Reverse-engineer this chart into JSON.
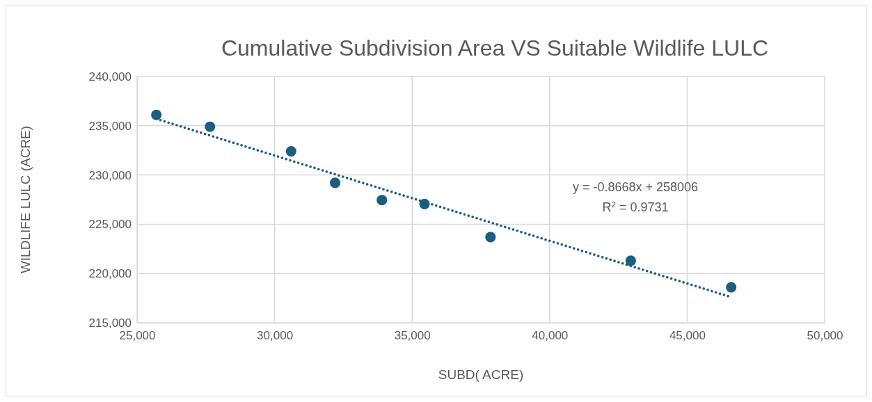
{
  "chart_data": {
    "type": "scatter",
    "title": "Cumulative Subdivision Area VS Suitable Wildlife LULC",
    "xlabel": "SUBD( ACRE)",
    "ylabel": "WILDLIFE LULC (ACRE)",
    "series": [
      {
        "color": "#1b5e80",
        "x": [
          25700,
          27650,
          30600,
          32200,
          33900,
          35450,
          37850,
          42950,
          46600
        ],
        "values": [
          236100,
          234900,
          232400,
          229200,
          227450,
          227050,
          223700,
          221300,
          218600
        ],
        "marker": "circle"
      },
      {
        "type": "line",
        "color": "#1b5e80",
        "x": [
          25700,
          46600
        ],
        "values": [
          235700,
          217600
        ],
        "line_style": "dotted",
        "marker": "none"
      }
    ],
    "annotations": [
      "y = -0.8668x + 258006",
      "R$^{2}$ = 0.9731"
    ],
    "xlim": [
      25000,
      50000
    ],
    "xticks": [
      {
        "value": 25000,
        "label": "25,000"
      },
      {
        "value": 30000,
        "label": "30,000"
      },
      {
        "value": 35000,
        "label": "35,000"
      },
      {
        "value": 40000,
        "label": "40,000"
      },
      {
        "value": 45000,
        "label": "45,000"
      },
      {
        "value": 50000,
        "label": "50,000"
      }
    ],
    "ylim": [
      215000,
      240000
    ],
    "yticks": [
      {
        "value": 215000,
        "label": "215,000"
      },
      {
        "value": 220000,
        "label": "220,000"
      },
      {
        "value": 225000,
        "label": "225,000"
      },
      {
        "value": 230000,
        "label": "230,000"
      },
      {
        "value": 235000,
        "label": "235,000"
      },
      {
        "value": 240000,
        "label": "240,000"
      }
    ],
    "grid": true
  }
}
